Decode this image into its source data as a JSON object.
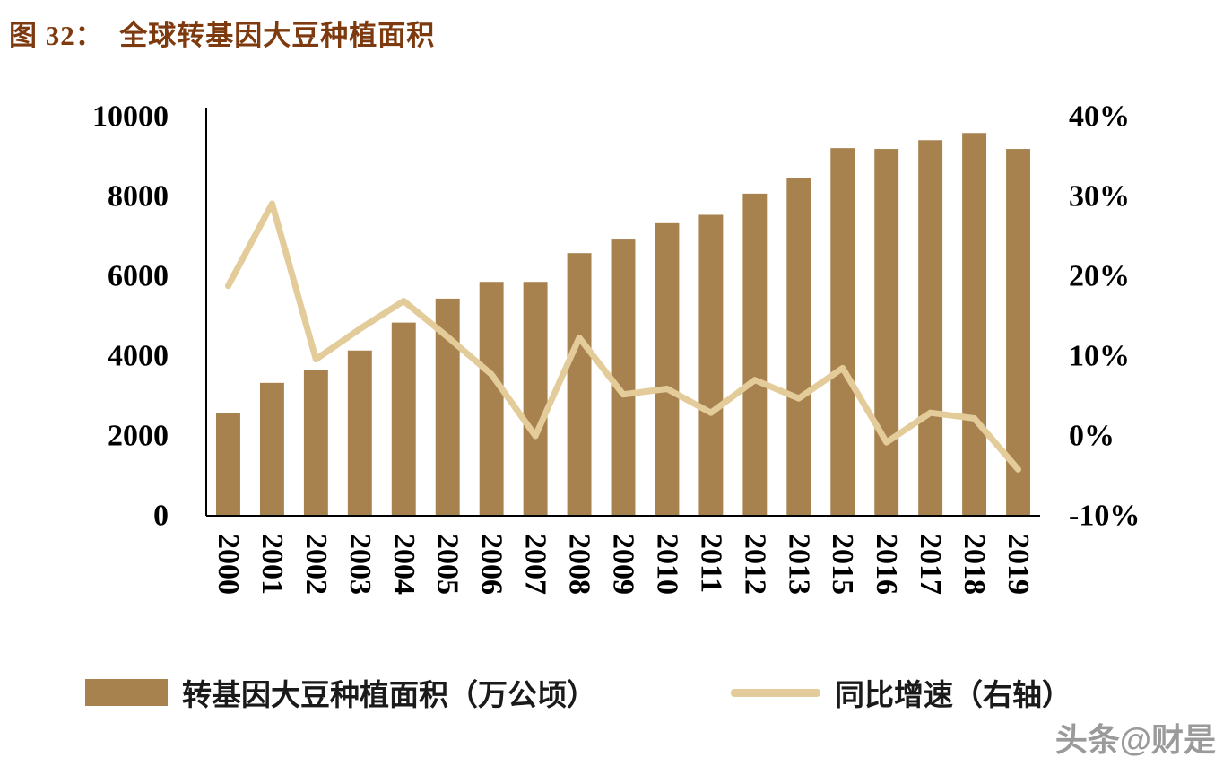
{
  "page": {
    "title": "图 32：  全球转基因大豆种植面积",
    "watermark": "头条@财是"
  },
  "chart_data": {
    "type": "bar",
    "subtype": "bar+line combo, dual axis",
    "title": "全球转基因大豆种植面积",
    "categories": [
      "2000",
      "2001",
      "2002",
      "2003",
      "2004",
      "2005",
      "2006",
      "2007",
      "2008",
      "2009",
      "2010",
      "2011",
      "2012",
      "2013",
      "2015",
      "2016",
      "2017",
      "2018",
      "2019"
    ],
    "series": [
      {
        "name": "转基因大豆种植面积（万公顷）",
        "type": "bar",
        "axis": "left",
        "color": "#A7824F",
        "values": [
          2580,
          3330,
          3650,
          4140,
          4840,
          5440,
          5860,
          5860,
          6580,
          6920,
          7330,
          7540,
          8070,
          8450,
          9210,
          9190,
          9410,
          9590,
          9190
        ]
      },
      {
        "name": "同比增速（右轴）",
        "type": "line",
        "axis": "right",
        "color": "#E3CB9A",
        "values": [
          18.8,
          29.1,
          9.6,
          13.4,
          16.9,
          12.4,
          7.7,
          0.0,
          12.3,
          5.2,
          5.9,
          2.9,
          7.0,
          4.7,
          8.5,
          -0.8,
          2.9,
          2.2,
          -4.2
        ]
      }
    ],
    "left_axis": {
      "min": 0,
      "max": 10000,
      "step": 2000,
      "tick_labels": [
        "0",
        "2000",
        "4000",
        "6000",
        "8000",
        "10000"
      ]
    },
    "right_axis": {
      "min": -10,
      "max": 40,
      "step": 10,
      "format": "percent",
      "tick_labels": [
        "-10%",
        "0%",
        "10%",
        "20%",
        "30%",
        "40%"
      ]
    },
    "grid": false,
    "legend_position": "bottom",
    "text_color": "#000000"
  }
}
